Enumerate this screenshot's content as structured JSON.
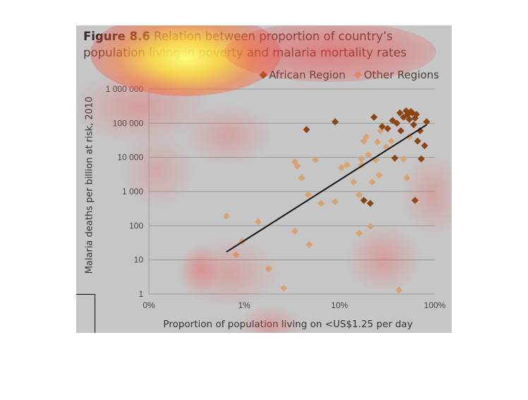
{
  "title": {
    "figure_label": "Figure 8.6",
    "text": "Relation between proportion of country’s population living in poverty and malaria mortality rates"
  },
  "colors": {
    "african": "#8b4513",
    "other": "#d9a273",
    "trend": "#111111",
    "grid": "#9a9a9a"
  },
  "chart_data": {
    "type": "scatter",
    "title": "Figure 8.6 Relation between proportion of country’s population living in poverty and malaria mortality rates",
    "xlabel": "Proportion of population living on <US$1.25 per day",
    "ylabel": "Malaria deaths per billion at risk, 2010",
    "x_scale": "log",
    "y_scale": "log",
    "xlim": [
      0.1,
      100
    ],
    "ylim": [
      1,
      1000000
    ],
    "x_ticks": [
      0.1,
      1,
      10,
      100
    ],
    "x_tick_labels": [
      "0%",
      "1%",
      "10%",
      "100%"
    ],
    "y_ticks": [
      1,
      10,
      100,
      1000,
      10000,
      100000,
      1000000
    ],
    "y_tick_labels": [
      "1",
      "10",
      "100",
      "1 000",
      "10 000",
      "100 000",
      "1 000 000"
    ],
    "grid": true,
    "legend": [
      "African Region",
      "Other Regions"
    ],
    "legend_position": "top-right",
    "series": [
      {
        "name": "African Region",
        "points": [
          [
            4.5,
            65000
          ],
          [
            9,
            110000
          ],
          [
            18,
            550
          ],
          [
            21,
            450
          ],
          [
            23,
            150000
          ],
          [
            28,
            80000
          ],
          [
            32,
            70000
          ],
          [
            36,
            120000
          ],
          [
            38,
            9500
          ],
          [
            40,
            100000
          ],
          [
            43,
            200000
          ],
          [
            44,
            60000
          ],
          [
            47,
            150000
          ],
          [
            50,
            230000
          ],
          [
            52,
            180000
          ],
          [
            54,
            130000
          ],
          [
            56,
            220000
          ],
          [
            58,
            200000
          ],
          [
            60,
            90000
          ],
          [
            62,
            140000
          ],
          [
            64,
            180000
          ],
          [
            62,
            550
          ],
          [
            66,
            30000
          ],
          [
            70,
            60000
          ],
          [
            72,
            9000
          ],
          [
            78,
            22000
          ],
          [
            82,
            110000
          ]
        ]
      },
      {
        "name": "Other Regions",
        "points": [
          [
            0.65,
            190
          ],
          [
            0.82,
            14
          ],
          [
            0.95,
            35
          ],
          [
            1.4,
            130
          ],
          [
            1.8,
            5.5
          ],
          [
            2.6,
            1.5
          ],
          [
            3.4,
            70
          ],
          [
            3.4,
            7500
          ],
          [
            3.6,
            5500
          ],
          [
            4.0,
            2500
          ],
          [
            4.7,
            800
          ],
          [
            4.8,
            28
          ],
          [
            5.6,
            8500
          ],
          [
            6.4,
            450
          ],
          [
            9,
            500
          ],
          [
            10.5,
            5000
          ],
          [
            12,
            6000
          ],
          [
            14,
            1900
          ],
          [
            16,
            60
          ],
          [
            16,
            800
          ],
          [
            17,
            6000
          ],
          [
            17,
            9000
          ],
          [
            18,
            30000
          ],
          [
            19,
            40000
          ],
          [
            20,
            12000
          ],
          [
            21,
            95
          ],
          [
            22,
            1900
          ],
          [
            24,
            8500
          ],
          [
            25,
            28000
          ],
          [
            26,
            3000
          ],
          [
            27,
            60000
          ],
          [
            31,
            20000
          ],
          [
            35,
            30000
          ],
          [
            42,
            1.3
          ],
          [
            47,
            9000
          ],
          [
            51,
            2500
          ],
          [
            54,
            40000
          ]
        ]
      }
    ],
    "trendline": {
      "x": [
        0.65,
        82
      ],
      "y": [
        17,
        90000
      ]
    }
  }
}
